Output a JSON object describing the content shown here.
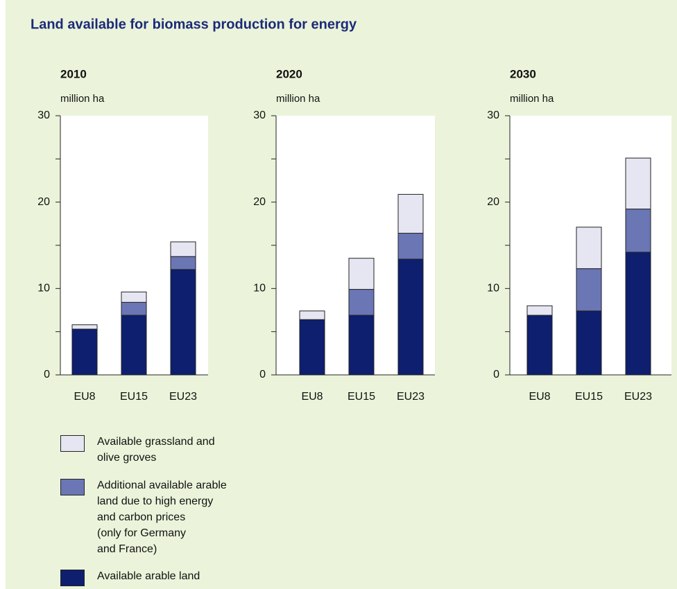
{
  "title": "Land available for biomass production for energy",
  "legend": [
    {
      "name": "Available arable land",
      "color": "#0d1f6e"
    },
    {
      "name": "Additional available arable\nland due to high energy\nand carbon prices\n(only for Germany\nand France)",
      "color": "#6b76b5"
    },
    {
      "name": "Available grassland and\nolive groves",
      "color": "#e6e6f3"
    }
  ],
  "chart_data": [
    {
      "type": "bar",
      "stacked": true,
      "title": "2010",
      "ylabel": "million ha",
      "categories": [
        "EU8",
        "EU15",
        "EU23"
      ],
      "series": [
        {
          "values": [
            5.3,
            6.9,
            12.2
          ]
        },
        {
          "values": [
            0,
            1.5,
            1.5
          ]
        },
        {
          "values": [
            0.5,
            1.2,
            1.7
          ]
        }
      ],
      "ylim": [
        0,
        30
      ],
      "yticks": [
        0,
        10,
        20,
        30
      ],
      "minor_yticks": [
        5,
        15,
        25
      ]
    },
    {
      "type": "bar",
      "stacked": true,
      "title": "2020",
      "ylabel": "million ha",
      "categories": [
        "EU8",
        "EU15",
        "EU23"
      ],
      "series": [
        {
          "values": [
            6.4,
            6.9,
            13.4
          ]
        },
        {
          "values": [
            0,
            3.0,
            3.0
          ]
        },
        {
          "values": [
            1.0,
            3.6,
            4.5
          ]
        }
      ],
      "ylim": [
        0,
        30
      ],
      "yticks": [
        0,
        10,
        20,
        30
      ],
      "minor_yticks": [
        5,
        15,
        25
      ]
    },
    {
      "type": "bar",
      "stacked": true,
      "title": "2030",
      "ylabel": "million ha",
      "categories": [
        "EU8",
        "EU15",
        "EU23"
      ],
      "series": [
        {
          "values": [
            6.9,
            7.4,
            14.2
          ]
        },
        {
          "values": [
            0,
            4.9,
            5.0
          ]
        },
        {
          "values": [
            1.1,
            4.8,
            5.9
          ]
        }
      ],
      "ylim": [
        0,
        30
      ],
      "yticks": [
        0,
        10,
        20,
        30
      ],
      "minor_yticks": [
        5,
        15,
        25
      ]
    }
  ]
}
